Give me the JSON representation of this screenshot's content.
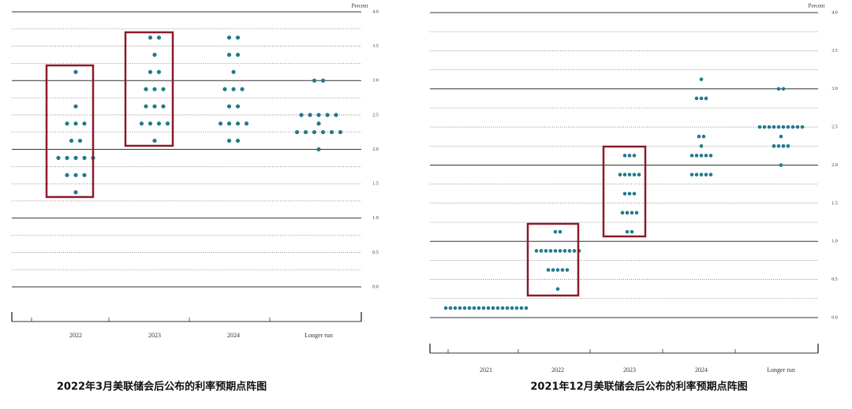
{
  "chart_data": [
    {
      "type": "dot",
      "title": "2022年3月美联储会后公布的利率预期点阵图",
      "y_label": "Percent",
      "categories": [
        "2022",
        "2023",
        "2024",
        "Longer run"
      ],
      "values": [
        [
          3.125,
          2.625,
          2.375,
          2.375,
          2.375,
          2.125,
          2.125,
          1.875,
          1.875,
          1.875,
          1.875,
          1.875,
          1.625,
          1.625,
          1.625,
          1.375
        ],
        [
          3.625,
          3.625,
          3.375,
          3.125,
          3.125,
          2.875,
          2.875,
          2.875,
          2.625,
          2.625,
          2.625,
          2.375,
          2.375,
          2.375,
          2.375,
          2.125
        ],
        [
          3.625,
          3.625,
          3.375,
          3.375,
          3.125,
          2.875,
          2.875,
          2.875,
          2.625,
          2.625,
          2.375,
          2.375,
          2.375,
          2.375,
          2.125,
          2.125
        ],
        [
          3.0,
          3.0,
          2.5,
          2.5,
          2.5,
          2.5,
          2.5,
          2.375,
          2.25,
          2.25,
          2.25,
          2.25,
          2.25,
          2.25,
          2.0
        ]
      ],
      "color": "#1f7b8c",
      "ylim": [
        0,
        4
      ],
      "yticks": [
        {
          "value": 0,
          "label": "0.0"
        },
        0.5,
        {
          "value": 1,
          "label": "1.0"
        },
        1.5,
        {
          "value": 2,
          "label": "2.0"
        },
        2.5,
        {
          "value": 3,
          "label": "3.0"
        },
        3.5,
        {
          "value": 4,
          "label": "4.0"
        }
      ],
      "minor_yticks": [
        0.25,
        0.75,
        1.25,
        1.75,
        2.25,
        2.75,
        3.25,
        3.75
      ],
      "grid": true
    },
    {
      "type": "dot",
      "title": "2021年12月美联储会后公布的利率预期点阵图",
      "y_label": "Percent",
      "categories": [
        "2021",
        "2022",
        "2023",
        "2024",
        "Longer run"
      ],
      "values": [
        [
          0.125,
          0.125,
          0.125,
          0.125,
          0.125,
          0.125,
          0.125,
          0.125,
          0.125,
          0.125,
          0.125,
          0.125,
          0.125,
          0.125,
          0.125,
          0.125,
          0.125,
          0.125
        ],
        [
          1.125,
          1.125,
          0.875,
          0.875,
          0.875,
          0.875,
          0.875,
          0.875,
          0.875,
          0.875,
          0.875,
          0.875,
          0.625,
          0.625,
          0.625,
          0.625,
          0.625,
          0.375
        ],
        [
          2.125,
          2.125,
          2.125,
          1.875,
          1.875,
          1.875,
          1.875,
          1.875,
          1.625,
          1.625,
          1.625,
          1.375,
          1.375,
          1.375,
          1.375,
          1.125,
          1.125
        ],
        [
          3.125,
          2.875,
          2.875,
          2.875,
          2.375,
          2.375,
          2.25,
          2.125,
          2.125,
          2.125,
          2.125,
          2.125,
          1.875,
          1.875,
          1.875,
          1.875,
          1.875
        ],
        [
          3.0,
          3.0,
          2.5,
          2.5,
          2.5,
          2.5,
          2.5,
          2.5,
          2.5,
          2.5,
          2.5,
          2.5,
          2.375,
          2.25,
          2.25,
          2.25,
          2.25,
          2.0
        ]
      ],
      "color": "#1f7b8c",
      "ylim": [
        0,
        4
      ],
      "yticks": [
        {
          "value": 0,
          "label": "0.0"
        },
        0.5,
        {
          "value": 1,
          "label": "1.0"
        },
        1.5,
        {
          "value": 2,
          "label": "2.0"
        },
        2.5,
        {
          "value": 3,
          "label": "3.0"
        },
        3.5,
        {
          "value": 4,
          "label": "4.0"
        }
      ],
      "minor_yticks": [
        0.25,
        0.75,
        1.25,
        1.75,
        2.25,
        2.75,
        3.25,
        3.75
      ],
      "grid": true
    }
  ]
}
